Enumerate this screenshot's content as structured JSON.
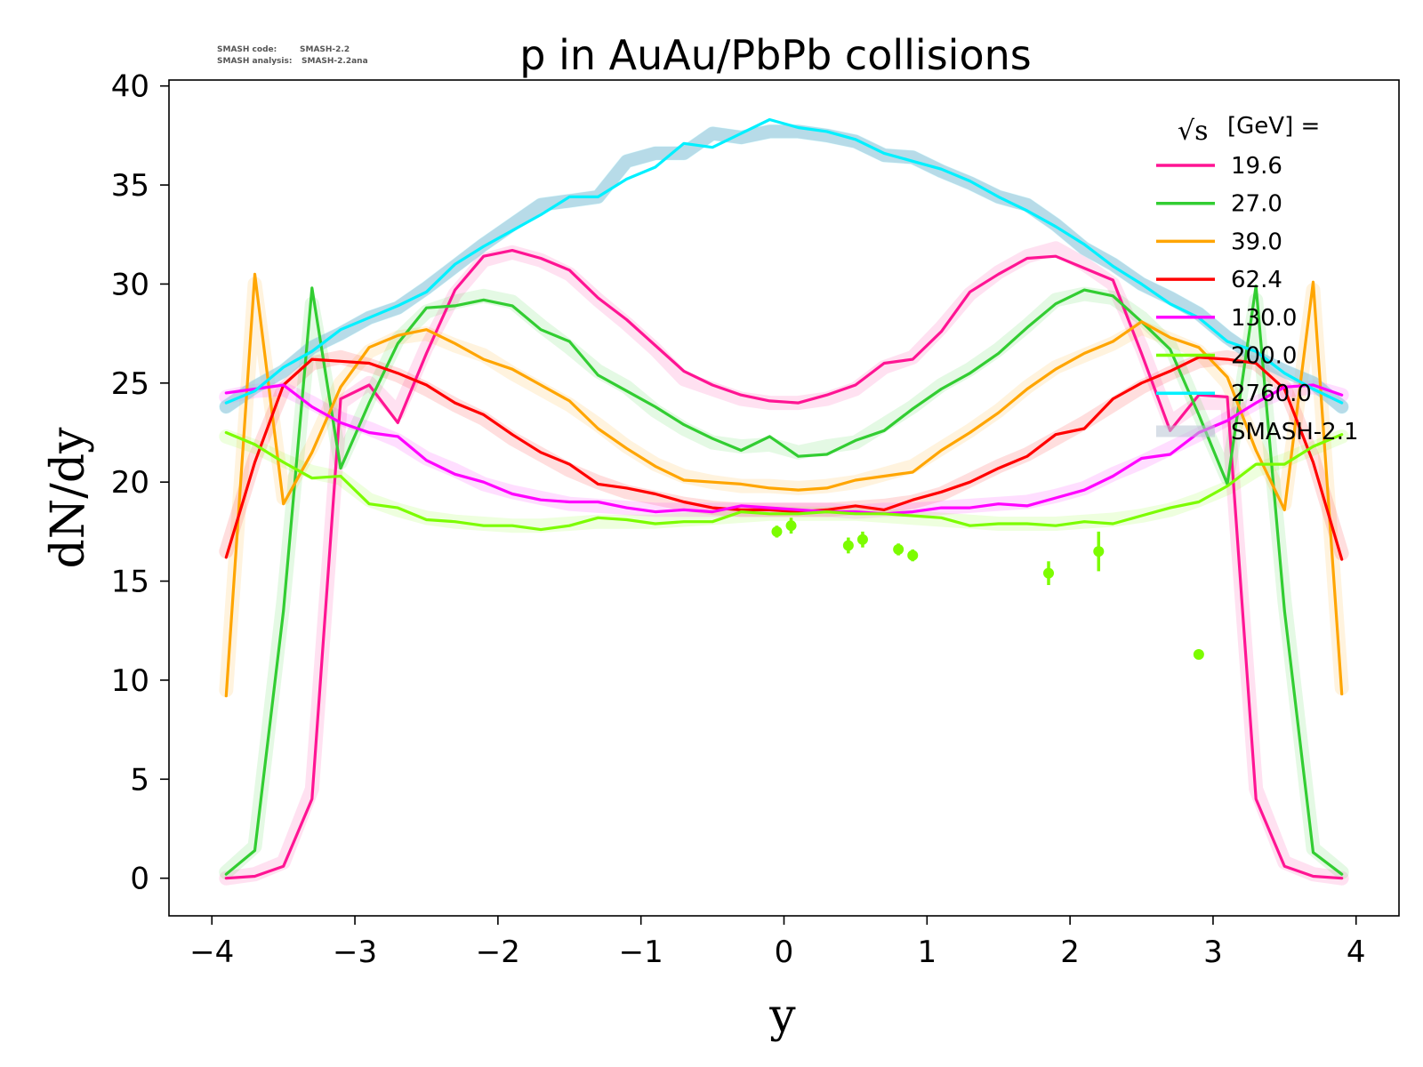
{
  "chart_data": {
    "type": "line",
    "title": "p in AuAu/PbPb collisions",
    "xlabel": "y",
    "ylabel": "dN/dy",
    "xlim": [
      -4.3,
      4.3
    ],
    "ylim": [
      -1.9,
      40.3
    ],
    "xticks": [
      -4,
      -3,
      -2,
      -1,
      0,
      1,
      2,
      3,
      4
    ],
    "yticks": [
      0,
      5,
      10,
      15,
      20,
      25,
      30,
      35,
      40
    ],
    "xtick_labels": [
      "−4",
      "−3",
      "−2",
      "−1",
      "0",
      "1",
      "2",
      "3",
      "4"
    ],
    "ytick_labels": [
      "0",
      "5",
      "10",
      "15",
      "20",
      "25",
      "30",
      "35",
      "40"
    ],
    "version_info": {
      "line1_label": "SMASH code:",
      "line1_value": "SMASH-2.2",
      "line2_label": "SMASH analysis:",
      "line2_value": "SMASH-2.2ana"
    },
    "legend": {
      "title_sqrt": "√s",
      "title_rest": "[GeV] =",
      "placement": "top-right",
      "reference_label": "SMASH-2.1"
    },
    "x": [
      -3.9,
      -3.7,
      -3.5,
      -3.3,
      -3.1,
      -2.9,
      -2.7,
      -2.5,
      -2.3,
      -2.1,
      -1.9,
      -1.7,
      -1.5,
      -1.3,
      -1.1,
      -0.9,
      -0.7,
      -0.5,
      -0.3,
      -0.1,
      0.1,
      0.3,
      0.5,
      0.7,
      0.9,
      1.1,
      1.3,
      1.5,
      1.7,
      1.9,
      2.1,
      2.3,
      2.5,
      2.7,
      2.9,
      3.1,
      3.3,
      3.5,
      3.7,
      3.9
    ],
    "series": [
      {
        "name": "19.6",
        "color": "#ff1493",
        "values": [
          0.0,
          0.1,
          0.6,
          4.0,
          24.2,
          24.9,
          23.0,
          26.5,
          29.7,
          31.4,
          31.7,
          31.3,
          30.7,
          29.3,
          28.2,
          26.9,
          25.6,
          24.9,
          24.4,
          24.1,
          24.0,
          24.4,
          24.9,
          26.0,
          26.2,
          27.6,
          29.6,
          30.5,
          31.3,
          31.4,
          30.8,
          30.2,
          26.5,
          22.6,
          24.4,
          24.3,
          4.0,
          0.6,
          0.1,
          0.0
        ],
        "reference": [
          0.0,
          0.2,
          0.8,
          4.5,
          24.0,
          25.0,
          23.5,
          26.8,
          29.5,
          31.2,
          31.6,
          31.2,
          30.5,
          29.2,
          28.0,
          26.7,
          25.2,
          24.7,
          24.2,
          24.0,
          24.0,
          24.2,
          24.7,
          25.8,
          26.3,
          27.8,
          29.5,
          30.6,
          31.4,
          31.8,
          31.0,
          30.0,
          26.8,
          23.0,
          24.0,
          24.0,
          4.5,
          0.8,
          0.2,
          0.0
        ]
      },
      {
        "name": "27.0",
        "color": "#32cd32",
        "values": [
          0.2,
          1.4,
          13.5,
          29.8,
          20.7,
          24.0,
          27.0,
          28.8,
          28.9,
          29.2,
          28.9,
          27.7,
          27.1,
          25.4,
          24.6,
          23.8,
          22.9,
          22.2,
          21.6,
          22.3,
          21.3,
          21.4,
          22.1,
          22.6,
          23.7,
          24.7,
          25.5,
          26.5,
          27.8,
          29.0,
          29.7,
          29.4,
          28.1,
          26.7,
          23.4,
          19.9,
          29.9,
          13.5,
          1.3,
          0.2
        ],
        "reference": [
          0.3,
          1.6,
          14.0,
          29.0,
          21.0,
          24.2,
          27.2,
          28.6,
          29.1,
          29.4,
          29.1,
          27.9,
          26.8,
          25.6,
          24.8,
          23.6,
          22.7,
          22.0,
          21.8,
          21.9,
          21.5,
          21.8,
          22.0,
          22.9,
          23.8,
          24.9,
          25.7,
          26.7,
          27.9,
          29.2,
          29.5,
          29.3,
          28.3,
          26.9,
          23.5,
          20.2,
          29.2,
          14.0,
          1.5,
          0.3
        ]
      },
      {
        "name": "39.0",
        "color": "#ffa500",
        "values": [
          9.2,
          30.5,
          18.9,
          21.5,
          24.8,
          26.8,
          27.4,
          27.7,
          27.0,
          26.2,
          25.7,
          24.9,
          24.1,
          22.7,
          21.7,
          20.8,
          20.1,
          20.0,
          19.9,
          19.7,
          19.6,
          19.7,
          20.1,
          20.3,
          20.5,
          21.6,
          22.5,
          23.5,
          24.7,
          25.7,
          26.5,
          27.1,
          28.1,
          27.3,
          26.8,
          25.3,
          21.6,
          18.6,
          30.1,
          9.3
        ],
        "reference": [
          9.5,
          30.0,
          19.2,
          21.8,
          25.0,
          26.6,
          27.3,
          27.5,
          26.9,
          26.4,
          25.5,
          24.7,
          23.9,
          22.9,
          21.8,
          20.9,
          20.3,
          20.0,
          19.8,
          19.8,
          19.7,
          19.8,
          20.0,
          20.4,
          20.8,
          21.7,
          22.6,
          23.6,
          24.8,
          25.8,
          26.4,
          27.0,
          27.8,
          27.2,
          26.6,
          25.0,
          21.9,
          18.9,
          29.7,
          9.6
        ]
      },
      {
        "name": "62.4",
        "color": "#ff0000",
        "values": [
          16.2,
          21.0,
          24.9,
          26.2,
          26.1,
          26.0,
          25.5,
          24.9,
          24.0,
          23.4,
          22.4,
          21.5,
          20.9,
          19.9,
          19.7,
          19.4,
          19.0,
          18.7,
          18.6,
          18.6,
          18.5,
          18.6,
          18.8,
          18.6,
          19.1,
          19.5,
          20.0,
          20.7,
          21.3,
          22.4,
          22.7,
          24.2,
          25.0,
          25.6,
          26.3,
          26.2,
          26.0,
          24.7,
          21.0,
          16.1
        ],
        "reference": [
          16.5,
          21.2,
          24.7,
          26.0,
          26.3,
          25.9,
          25.4,
          24.7,
          23.9,
          23.2,
          22.2,
          21.4,
          20.6,
          20.0,
          19.5,
          19.2,
          18.9,
          18.7,
          18.6,
          18.6,
          18.6,
          18.6,
          18.7,
          18.8,
          19.0,
          19.4,
          20.1,
          20.8,
          21.4,
          22.2,
          23.0,
          23.9,
          24.8,
          25.5,
          26.1,
          26.3,
          26.0,
          24.8,
          21.2,
          16.4
        ]
      },
      {
        "name": "130.0",
        "color": "#ff00ff",
        "values": [
          24.5,
          24.7,
          24.9,
          23.8,
          23.0,
          22.5,
          22.3,
          21.1,
          20.4,
          20.0,
          19.4,
          19.1,
          19.0,
          19.0,
          18.7,
          18.5,
          18.6,
          18.5,
          18.8,
          18.7,
          18.6,
          18.5,
          18.5,
          18.4,
          18.5,
          18.7,
          18.7,
          18.9,
          18.8,
          19.2,
          19.6,
          20.3,
          21.2,
          21.4,
          22.5,
          23.1,
          24.0,
          24.8,
          24.9,
          24.4
        ],
        "reference": [
          24.3,
          24.6,
          24.7,
          24.0,
          23.2,
          22.7,
          22.1,
          21.2,
          20.6,
          19.9,
          19.5,
          19.2,
          18.9,
          18.8,
          18.7,
          18.6,
          18.6,
          18.6,
          18.6,
          18.6,
          18.6,
          18.6,
          18.5,
          18.6,
          18.6,
          18.7,
          18.8,
          18.9,
          19.0,
          19.3,
          19.7,
          20.4,
          21.0,
          21.7,
          22.4,
          23.2,
          24.0,
          24.6,
          24.8,
          24.4
        ]
      },
      {
        "name": "200.0",
        "color": "#7cfc00",
        "values": [
          22.5,
          21.9,
          21.0,
          20.2,
          20.3,
          18.9,
          18.7,
          18.1,
          18.0,
          17.8,
          17.8,
          17.6,
          17.8,
          18.2,
          18.1,
          17.9,
          18.0,
          18.0,
          18.5,
          18.4,
          18.4,
          18.5,
          18.4,
          18.4,
          18.3,
          18.2,
          17.8,
          17.9,
          17.9,
          17.8,
          18.0,
          17.9,
          18.3,
          18.7,
          19.0,
          19.8,
          20.9,
          20.9,
          21.8,
          22.4
        ],
        "reference": [
          22.3,
          21.8,
          21.1,
          20.5,
          20.2,
          19.1,
          18.6,
          18.2,
          18.0,
          17.9,
          17.8,
          17.8,
          17.9,
          18.0,
          18.0,
          18.0,
          18.1,
          18.2,
          18.3,
          18.4,
          18.4,
          18.4,
          18.4,
          18.3,
          18.2,
          18.1,
          18.0,
          17.9,
          17.9,
          17.9,
          18.0,
          18.1,
          18.3,
          18.6,
          19.1,
          19.7,
          20.6,
          21.1,
          21.7,
          22.3
        ]
      },
      {
        "name": "2760.0",
        "color": "#00f0ff",
        "values": [
          24.0,
          24.6,
          25.8,
          26.6,
          27.7,
          28.3,
          28.9,
          29.6,
          31.0,
          31.9,
          32.7,
          33.5,
          34.4,
          34.4,
          35.3,
          35.9,
          37.1,
          36.9,
          37.6,
          38.3,
          37.9,
          37.7,
          37.3,
          36.6,
          36.2,
          35.8,
          35.2,
          34.4,
          33.7,
          32.9,
          32.0,
          30.9,
          30.0,
          29.0,
          28.3,
          27.1,
          26.6,
          25.5,
          24.7,
          24.0
        ],
        "reference": [
          23.8,
          24.8,
          25.6,
          26.8,
          27.5,
          28.3,
          28.8,
          29.8,
          30.9,
          32.0,
          33.0,
          34.0,
          34.2,
          34.4,
          36.2,
          36.6,
          36.6,
          37.6,
          37.4,
          37.7,
          37.7,
          37.5,
          37.2,
          36.5,
          36.4,
          35.7,
          35.1,
          34.4,
          34.0,
          33.0,
          31.8,
          31.0,
          30.0,
          29.3,
          28.5,
          27.3,
          26.3,
          25.6,
          25.0,
          23.8
        ]
      }
    ],
    "experimental_points": {
      "color": "#7cfc00",
      "points": [
        {
          "x": -0.05,
          "y": 17.5,
          "err": 0.3
        },
        {
          "x": 0.05,
          "y": 17.8,
          "err": 0.4
        },
        {
          "x": 0.45,
          "y": 16.8,
          "err": 0.4
        },
        {
          "x": 0.55,
          "y": 17.1,
          "err": 0.4
        },
        {
          "x": 0.8,
          "y": 16.6,
          "err": 0.3
        },
        {
          "x": 0.9,
          "y": 16.3,
          "err": 0.3
        },
        {
          "x": 1.85,
          "y": 15.4,
          "err": 0.6
        },
        {
          "x": 2.2,
          "y": 16.5,
          "err": 1.0
        },
        {
          "x": 2.9,
          "y": 11.3,
          "err": 0.2
        }
      ]
    }
  }
}
